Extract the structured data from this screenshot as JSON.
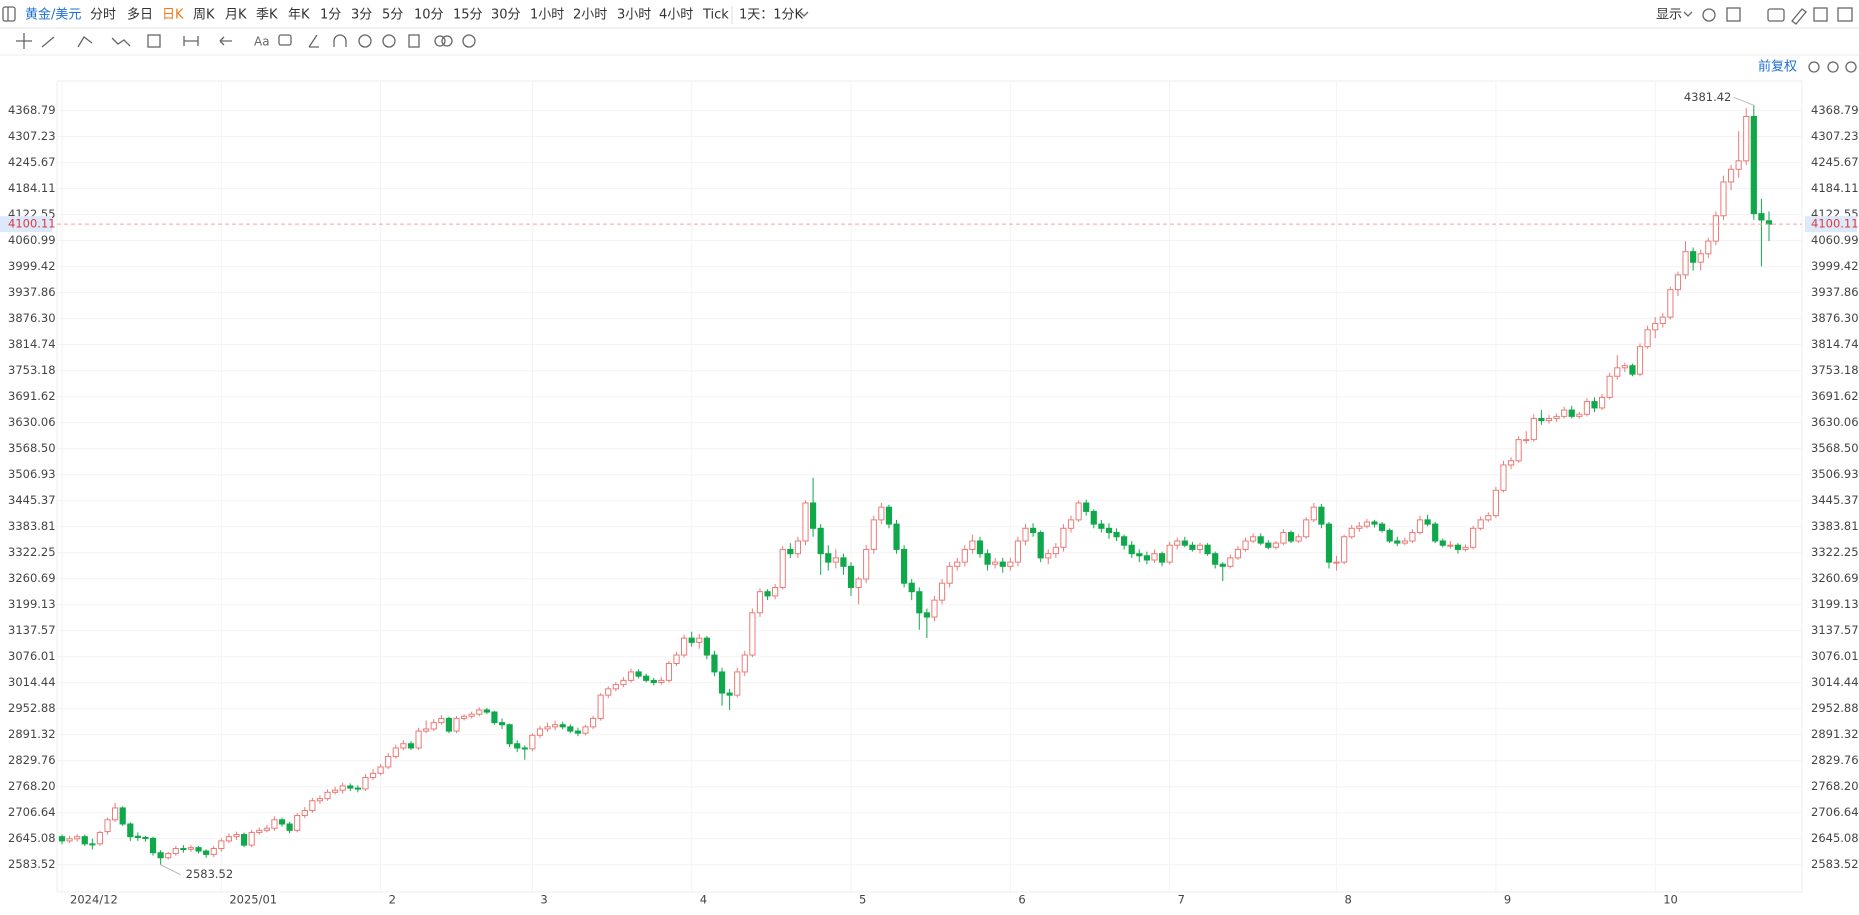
{
  "toolbar": {
    "symbol": "黄金/美元",
    "periods": [
      "分时",
      "多日",
      "日K",
      "周K",
      "月K",
      "季K",
      "年K",
      "1分",
      "3分",
      "5分",
      "10分",
      "15分",
      "30分",
      "1小时",
      "2小时",
      "3小时",
      "4小时",
      "Tick"
    ],
    "range": "1天：1分K",
    "display": "显示",
    "adjust": "前复权"
  },
  "chart_data": {
    "type": "candlestick",
    "up_color": "#ec7b78",
    "down_color": "#0fa84b",
    "grid": true,
    "ylim": [
      2519,
      4439
    ],
    "yticks": [
      2583.52,
      2645.08,
      2706.64,
      {
        "value": 2768.2,
        "label": "2768.20"
      },
      2829.76,
      2891.32,
      2952.88,
      3014.44,
      3076.01,
      3137.57,
      3199.13,
      3260.69,
      3322.25,
      3383.81,
      3445.37,
      3506.93,
      {
        "value": 3568.5,
        "label": "3568.50"
      },
      3630.06,
      3691.62,
      3753.18,
      3814.74,
      {
        "value": 3876.3,
        "label": "3876.30"
      },
      3937.86,
      3999.42,
      4060.99,
      4122.55,
      4184.11,
      4245.67,
      4307.23,
      4368.79
    ],
    "categories": [
      "2024/12",
      null,
      null,
      null,
      null,
      null,
      null,
      null,
      null,
      null,
      null,
      null,
      null,
      null,
      null,
      null,
      null,
      null,
      null,
      null,
      null,
      "2025/01",
      null,
      null,
      null,
      null,
      null,
      null,
      null,
      null,
      null,
      null,
      null,
      null,
      null,
      null,
      null,
      null,
      null,
      null,
      null,
      null,
      "2",
      null,
      null,
      null,
      null,
      null,
      null,
      null,
      null,
      null,
      null,
      null,
      null,
      null,
      null,
      null,
      null,
      null,
      null,
      null,
      "3",
      null,
      null,
      null,
      null,
      null,
      null,
      null,
      null,
      null,
      null,
      null,
      null,
      null,
      null,
      null,
      null,
      null,
      null,
      null,
      null,
      "4",
      null,
      null,
      null,
      null,
      null,
      null,
      null,
      null,
      null,
      null,
      null,
      null,
      null,
      null,
      null,
      null,
      null,
      null,
      null,
      null,
      "5",
      null,
      null,
      null,
      null,
      null,
      null,
      null,
      null,
      null,
      null,
      null,
      null,
      null,
      null,
      null,
      null,
      null,
      null,
      null,
      null,
      "6",
      null,
      null,
      null,
      null,
      null,
      null,
      null,
      null,
      null,
      null,
      null,
      null,
      null,
      null,
      null,
      null,
      null,
      null,
      null,
      null,
      "7",
      null,
      null,
      null,
      null,
      null,
      null,
      null,
      null,
      null,
      null,
      null,
      null,
      null,
      null,
      null,
      null,
      null,
      null,
      null,
      null,
      null,
      "8",
      null,
      null,
      null,
      null,
      null,
      null,
      null,
      null,
      null,
      null,
      null,
      null,
      null,
      null,
      null,
      null,
      null,
      null,
      null,
      null,
      "9",
      null,
      null,
      null,
      null,
      null,
      null,
      null,
      null,
      null,
      null,
      null,
      null,
      null,
      null,
      null,
      null,
      null,
      null,
      null,
      null,
      "10",
      null,
      null,
      null,
      null,
      null,
      null,
      null,
      null,
      null,
      null,
      null,
      null,
      null,
      null,
      null
    ],
    "open": [
      2650,
      2640,
      2645,
      2650,
      2633,
      2633,
      2662,
      2690,
      2718,
      2680,
      2651,
      2648,
      2646,
      2612,
      2600,
      2610,
      2622,
      2620,
      2624,
      2616,
      2608,
      2622,
      2640,
      2650,
      2655,
      2630,
      2660,
      2665,
      2670,
      2690,
      2680,
      2665,
      2700,
      2712,
      2735,
      2740,
      2755,
      2760,
      2770,
      2765,
      2763,
      2790,
      2800,
      2815,
      2840,
      2860,
      2870,
      2860,
      2900,
      2905,
      2920,
      2930,
      2900,
      2930,
      2935,
      2940,
      2950,
      2945,
      2920,
      2915,
      2870,
      2860,
      2858,
      2890,
      2905,
      2910,
      2915,
      2910,
      2900,
      2895,
      2910,
      2930,
      2985,
      3000,
      3010,
      3020,
      3040,
      3030,
      3020,
      3015,
      3020,
      3060,
      3080,
      3120,
      3110,
      3120,
      3080,
      3040,
      2990,
      2985,
      3040,
      3080,
      3180,
      3230,
      3220,
      3240,
      3330,
      3320,
      3350,
      3440,
      3380,
      3320,
      3300,
      3310,
      3290,
      3240,
      3260,
      3330,
      3400,
      3430,
      3390,
      3330,
      3250,
      3230,
      3180,
      3170,
      3210,
      3250,
      3290,
      3300,
      3330,
      3350,
      3320,
      3295,
      3300,
      3290,
      3300,
      3350,
      3380,
      3370,
      3310,
      3320,
      3335,
      3380,
      3400,
      3440,
      3420,
      3390,
      3380,
      3370,
      3360,
      3340,
      3320,
      3315,
      3305,
      3320,
      3300,
      3340,
      3350,
      3340,
      3330,
      3340,
      3320,
      3295,
      3290,
      3310,
      3330,
      3350,
      3360,
      3345,
      3335,
      3345,
      3370,
      3350,
      3360,
      3400,
      3430,
      3390,
      3300,
      3300,
      3360,
      3380,
      3385,
      3395,
      3390,
      3375,
      3350,
      3345,
      3350,
      3370,
      3400,
      3390,
      3350,
      3340,
      3340,
      3330,
      3335,
      3380,
      3400,
      3410,
      3470,
      3530,
      3540,
      3590,
      3590,
      3640,
      3635,
      3640,
      3645,
      3660,
      3645,
      3650,
      3680,
      3665,
      3690,
      3740,
      3760,
      3765,
      3745,
      3810,
      3850,
      3865,
      3880,
      3945,
      3980,
      4035,
      4010,
      4030,
      4060,
      4120,
      4200,
      4230,
      4250,
      4355,
      4125,
      4108
    ],
    "high": [
      2655,
      2652,
      2656,
      2655,
      2645,
      2664,
      2695,
      2730,
      2722,
      2684,
      2660,
      2652,
      2650,
      2618,
      2614,
      2628,
      2630,
      2630,
      2628,
      2620,
      2628,
      2646,
      2658,
      2662,
      2660,
      2666,
      2672,
      2678,
      2698,
      2695,
      2685,
      2706,
      2720,
      2742,
      2748,
      2762,
      2768,
      2778,
      2776,
      2772,
      2798,
      2810,
      2822,
      2848,
      2868,
      2878,
      2876,
      2908,
      2925,
      2928,
      2938,
      2934,
      2936,
      2940,
      2946,
      2956,
      2955,
      2948,
      2930,
      2918,
      2878,
      2866,
      2895,
      2912,
      2920,
      2925,
      2922,
      2916,
      2908,
      2915,
      2936,
      2990,
      3006,
      3016,
      3028,
      3048,
      3046,
      3036,
      3026,
      3028,
      3066,
      3088,
      3128,
      3135,
      3130,
      3125,
      3090,
      3050,
      3000,
      3050,
      3090,
      3190,
      3238,
      3236,
      3248,
      3338,
      3345,
      3360,
      3446,
      3500,
      3390,
      3340,
      3330,
      3320,
      3300,
      3265,
      3340,
      3410,
      3440,
      3436,
      3400,
      3340,
      3260,
      3240,
      3190,
      3220,
      3260,
      3300,
      3310,
      3340,
      3365,
      3360,
      3330,
      3310,
      3310,
      3310,
      3360,
      3390,
      3392,
      3375,
      3330,
      3345,
      3390,
      3410,
      3446,
      3448,
      3425,
      3400,
      3392,
      3380,
      3365,
      3350,
      3330,
      3325,
      3330,
      3325,
      3348,
      3358,
      3360,
      3348,
      3346,
      3345,
      3325,
      3300,
      3318,
      3338,
      3358,
      3368,
      3368,
      3352,
      3350,
      3378,
      3375,
      3366,
      3406,
      3440,
      3438,
      3395,
      3315,
      3365,
      3388,
      3395,
      3402,
      3400,
      3395,
      3380,
      3360,
      3358,
      3378,
      3410,
      3412,
      3395,
      3356,
      3350,
      3345,
      3342,
      3386,
      3408,
      3418,
      3478,
      3540,
      3548,
      3598,
      3610,
      3650,
      3660,
      3648,
      3652,
      3668,
      3670,
      3656,
      3688,
      3690,
      3698,
      3748,
      3790,
      3772,
      3770,
      3818,
      3860,
      3880,
      3890,
      3952,
      3988,
      4060,
      4045,
      4040,
      4068,
      4130,
      4215,
      4240,
      4320,
      4375,
      4381.42,
      4160,
      4130
    ],
    "low": [
      2632,
      2635,
      2638,
      2628,
      2620,
      2628,
      2655,
      2685,
      2675,
      2640,
      2640,
      2638,
      2605,
      2583.52,
      2596,
      2605,
      2612,
      2614,
      2610,
      2600,
      2602,
      2615,
      2635,
      2642,
      2625,
      2625,
      2655,
      2660,
      2664,
      2674,
      2658,
      2660,
      2694,
      2706,
      2728,
      2735,
      2750,
      2752,
      2758,
      2755,
      2758,
      2784,
      2795,
      2810,
      2835,
      2855,
      2855,
      2855,
      2895,
      2900,
      2915,
      2895,
      2895,
      2925,
      2930,
      2935,
      2940,
      2915,
      2905,
      2862,
      2850,
      2832,
      2852,
      2884,
      2898,
      2902,
      2904,
      2895,
      2888,
      2890,
      2905,
      2925,
      2978,
      2994,
      3004,
      3015,
      3025,
      3015,
      3008,
      3010,
      3015,
      3054,
      3074,
      3100,
      3095,
      3070,
      3030,
      2960,
      2950,
      2980,
      3030,
      3075,
      3170,
      3210,
      3212,
      3235,
      3310,
      3310,
      3340,
      3360,
      3270,
      3280,
      3285,
      3270,
      3220,
      3200,
      3250,
      3320,
      3390,
      3380,
      3320,
      3240,
      3210,
      3140,
      3120,
      3160,
      3200,
      3240,
      3280,
      3290,
      3320,
      3310,
      3280,
      3285,
      3275,
      3280,
      3290,
      3340,
      3360,
      3300,
      3295,
      3310,
      3325,
      3370,
      3395,
      3410,
      3380,
      3370,
      3355,
      3350,
      3330,
      3310,
      3300,
      3295,
      3298,
      3290,
      3295,
      3330,
      3335,
      3325,
      3320,
      3315,
      3285,
      3255,
      3285,
      3305,
      3325,
      3345,
      3340,
      3330,
      3330,
      3340,
      3345,
      3345,
      3355,
      3395,
      3380,
      3285,
      3280,
      3295,
      3355,
      3372,
      3380,
      3382,
      3370,
      3345,
      3338,
      3340,
      3345,
      3365,
      3385,
      3345,
      3335,
      3332,
      3320,
      3325,
      3330,
      3375,
      3395,
      3405,
      3465,
      3520,
      3535,
      3580,
      3585,
      3625,
      3628,
      3632,
      3640,
      3640,
      3640,
      3645,
      3655,
      3660,
      3685,
      3732,
      3750,
      3740,
      3740,
      3805,
      3830,
      3855,
      3875,
      3930,
      3970,
      3990,
      3990,
      4020,
      4050,
      4110,
      4180,
      4210,
      4240,
      4110,
      4000,
      4060
    ],
    "close": [
      2640,
      2645,
      2650,
      2633,
      2632,
      2660,
      2690,
      2718,
      2680,
      2650,
      2648,
      2646,
      2612,
      2600,
      2610,
      2622,
      2620,
      2624,
      2616,
      2608,
      2622,
      2640,
      2650,
      2655,
      2630,
      2660,
      2665,
      2670,
      2690,
      2680,
      2665,
      2700,
      2712,
      2735,
      2740,
      2755,
      2760,
      2770,
      2765,
      2763,
      2790,
      2800,
      2815,
      2840,
      2860,
      2870,
      2860,
      2900,
      2905,
      2920,
      2930,
      2900,
      2930,
      2935,
      2940,
      2950,
      2945,
      2920,
      2915,
      2870,
      2860,
      2858,
      2890,
      2905,
      2910,
      2915,
      2910,
      2900,
      2895,
      2910,
      2930,
      2985,
      3000,
      3010,
      3020,
      3040,
      3030,
      3020,
      3015,
      3020,
      3060,
      3080,
      3120,
      3110,
      3120,
      3080,
      3040,
      2990,
      2985,
      3040,
      3080,
      3180,
      3230,
      3220,
      3240,
      3330,
      3320,
      3350,
      3440,
      3380,
      3320,
      3300,
      3310,
      3290,
      3240,
      3260,
      3330,
      3400,
      3430,
      3390,
      3330,
      3250,
      3230,
      3180,
      3170,
      3210,
      3250,
      3290,
      3300,
      3330,
      3350,
      3320,
      3295,
      3300,
      3290,
      3300,
      3350,
      3380,
      3370,
      3310,
      3320,
      3335,
      3380,
      3400,
      3440,
      3420,
      3390,
      3380,
      3370,
      3360,
      3340,
      3320,
      3315,
      3305,
      3320,
      3300,
      3340,
      3350,
      3340,
      3330,
      3340,
      3320,
      3295,
      3290,
      3310,
      3330,
      3350,
      3360,
      3345,
      3335,
      3345,
      3370,
      3350,
      3360,
      3400,
      3430,
      3390,
      3300,
      3300,
      3360,
      3380,
      3385,
      3395,
      3390,
      3375,
      3350,
      3345,
      3350,
      3370,
      3400,
      3390,
      3350,
      3340,
      3340,
      3330,
      3335,
      3380,
      3400,
      3410,
      3470,
      3530,
      3540,
      3590,
      3590,
      3640,
      3635,
      3640,
      3645,
      3660,
      3645,
      3650,
      3680,
      3665,
      3690,
      3740,
      3760,
      3765,
      3745,
      3810,
      3850,
      3865,
      3880,
      3945,
      3980,
      4035,
      4010,
      4030,
      4060,
      4120,
      4200,
      4230,
      4250,
      4355,
      4125,
      4110,
      4100.11
    ]
  }
}
